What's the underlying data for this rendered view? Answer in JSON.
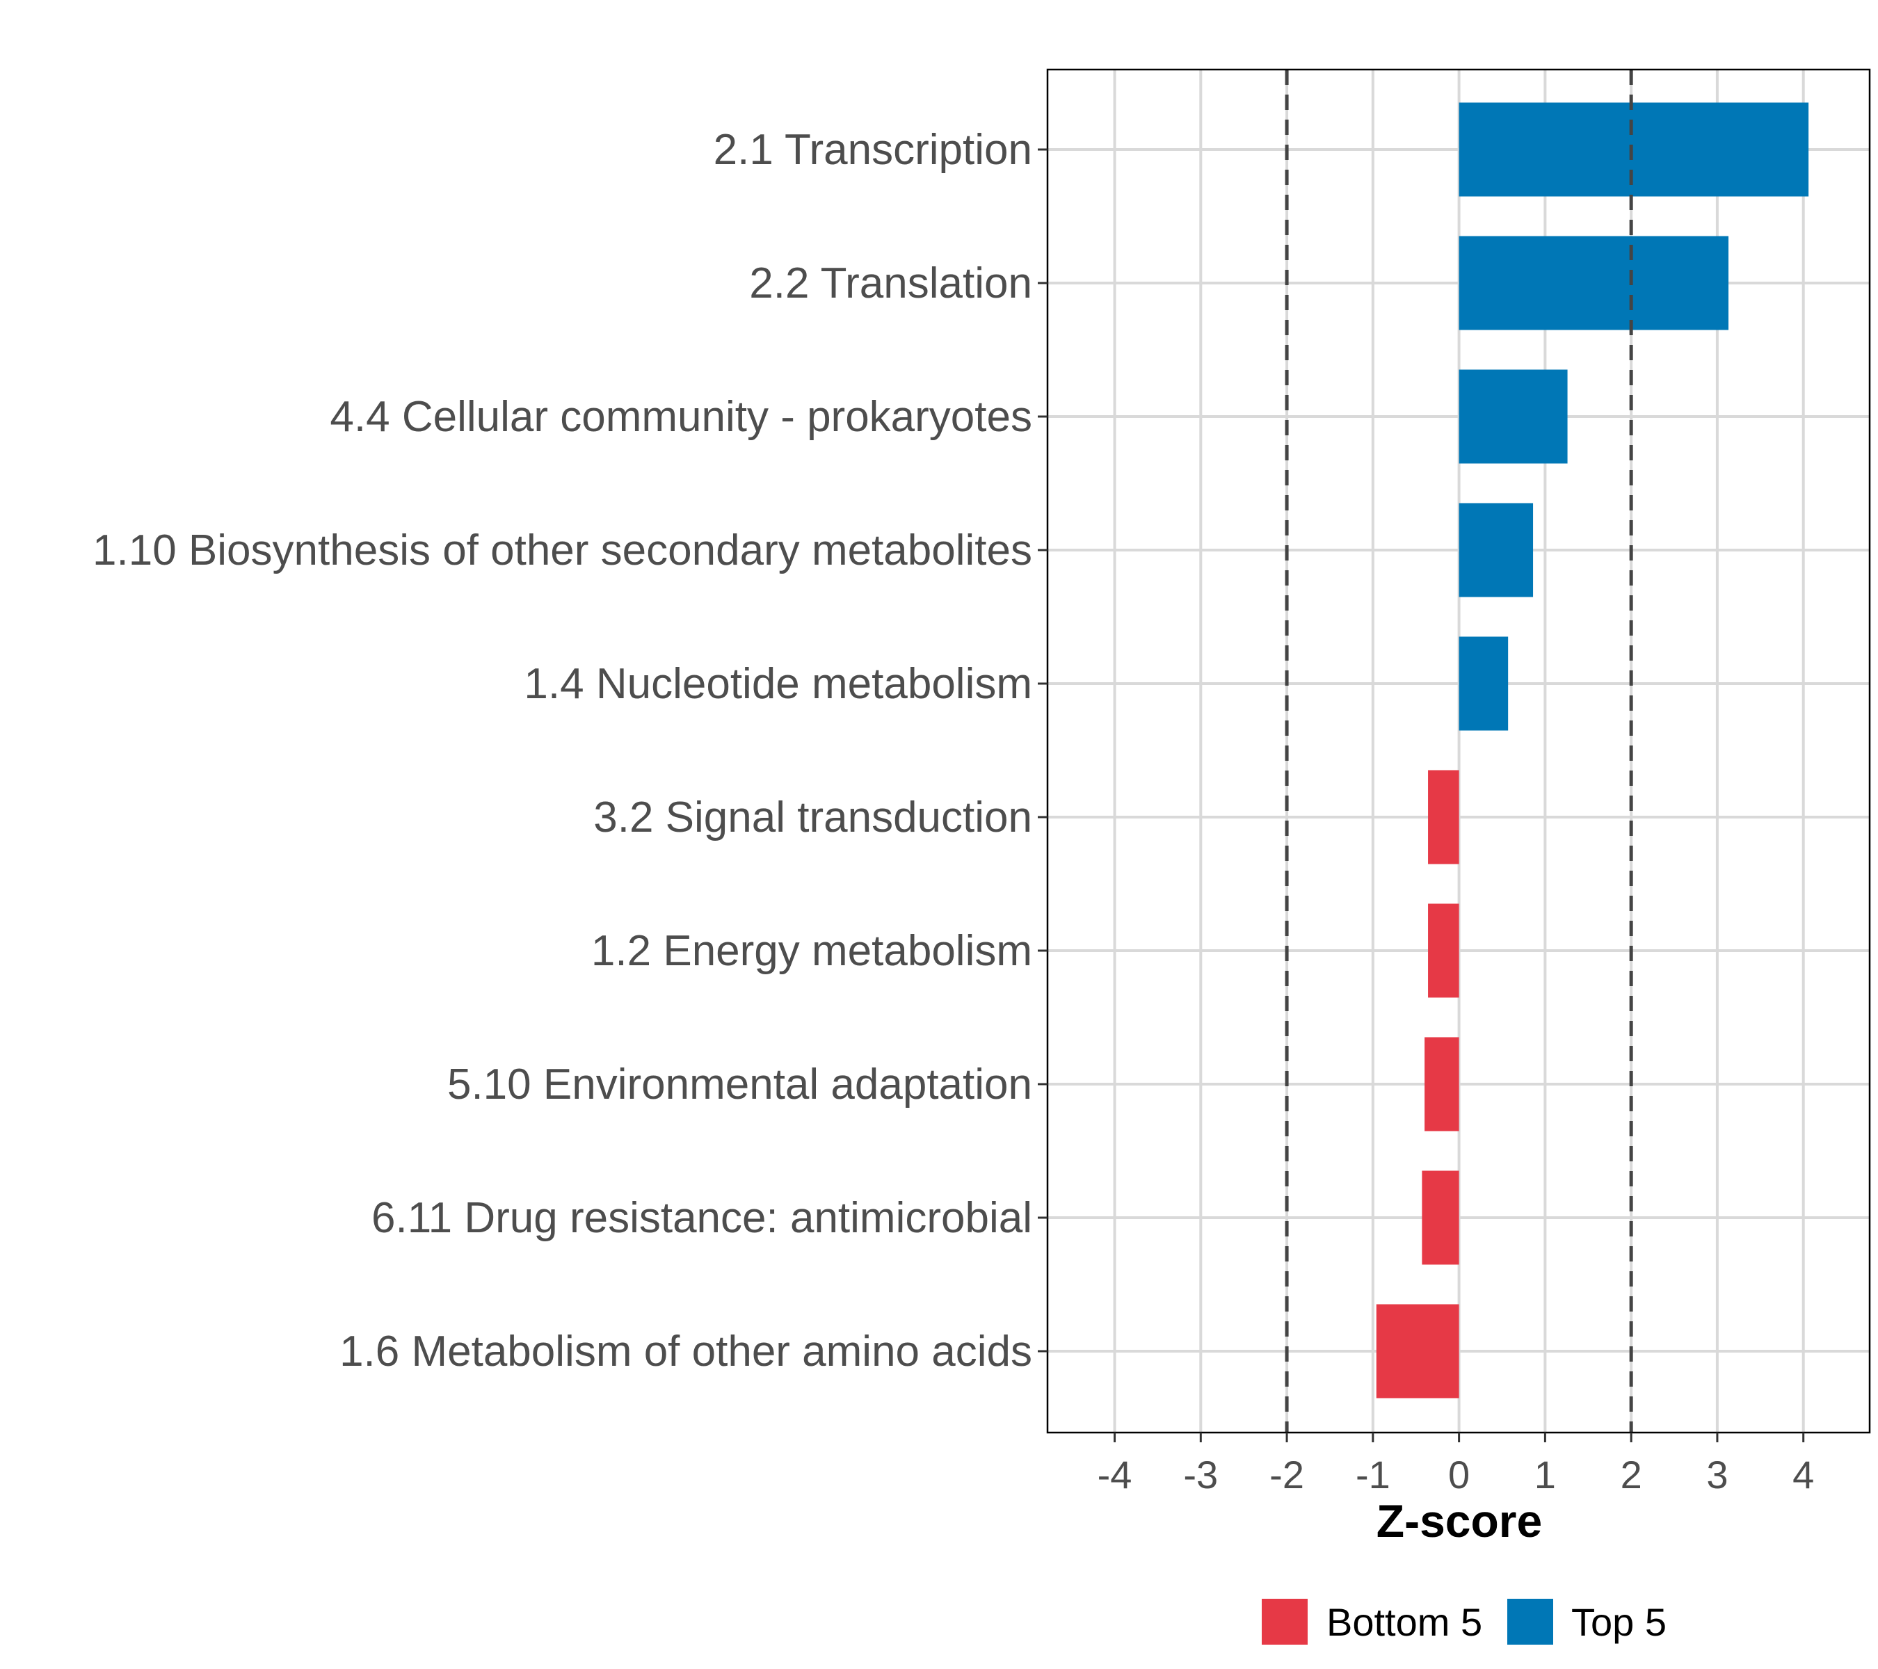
{
  "chart_data": {
    "type": "bar",
    "orientation": "horizontal",
    "title": "",
    "xlabel": "Z-score",
    "ylabel": "",
    "xlim": [
      -4.78,
      4.77
    ],
    "xticks": [
      -4,
      -3,
      -2,
      -1,
      0,
      1,
      2,
      3,
      4
    ],
    "xtick_labels": [
      "-4",
      "-3",
      "-2",
      "-1",
      "0",
      "1",
      "2",
      "3",
      "4"
    ],
    "reference_lines": [
      -2,
      2
    ],
    "grid": true,
    "categories": [
      "2.1 Transcription",
      "2.2 Translation",
      "4.4 Cellular community - prokaryotes",
      "1.10 Biosynthesis of other secondary metabolites",
      "1.4 Nucleotide metabolism",
      "3.2 Signal transduction",
      "1.2 Energy metabolism",
      "5.10 Environmental adaptation",
      "6.11 Drug resistance: antimicrobial",
      "1.6 Metabolism of other amino acids"
    ],
    "values": [
      4.06,
      3.13,
      1.26,
      0.86,
      0.57,
      -0.36,
      -0.36,
      -0.4,
      -0.43,
      -0.96
    ],
    "groups": [
      "Top 5",
      "Top 5",
      "Top 5",
      "Top 5",
      "Top 5",
      "Bottom 5",
      "Bottom 5",
      "Bottom 5",
      "Bottom 5",
      "Bottom 5"
    ],
    "legend": {
      "placement": "bottom",
      "entries": [
        {
          "label": "Bottom 5",
          "color": "#E63946"
        },
        {
          "label": "Top 5",
          "color": "#0077B6"
        }
      ]
    }
  }
}
